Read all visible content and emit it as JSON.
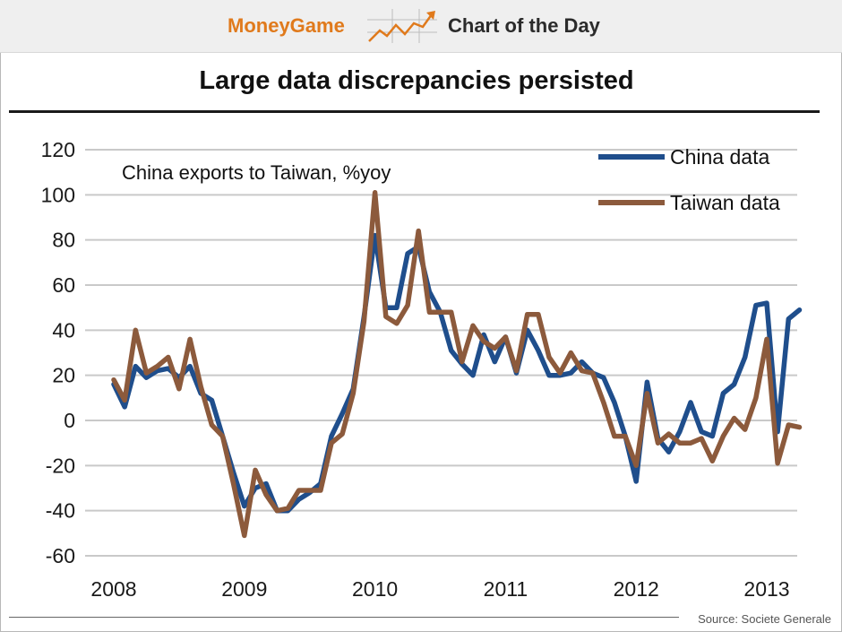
{
  "banner": {
    "brand": "MoneyGame",
    "label": "Chart of the Day"
  },
  "source": "Source: Societe Generale",
  "colors": {
    "china": "#1f4e8c",
    "taiwan": "#8c5a3c",
    "brand": "#e07a1c"
  },
  "chart_data": {
    "type": "line",
    "title": "Large data discrepancies persisted",
    "annotation": "China exports to Taiwan, %yoy",
    "xlabel": "",
    "ylabel": "",
    "x_ticks": [
      "2008",
      "2009",
      "2010",
      "2011",
      "2012",
      "2013"
    ],
    "y_ticks": [
      120,
      100,
      80,
      60,
      40,
      20,
      0,
      -20,
      -40,
      -60
    ],
    "ylim": [
      -60,
      120
    ],
    "x_start": 2008,
    "x_step_months": 1,
    "grid": true,
    "legend_position": "top-right",
    "series": [
      {
        "name": "China data",
        "values": [
          16,
          6,
          24,
          19,
          22,
          23,
          19,
          24,
          12,
          9,
          -7,
          -23,
          -38,
          -30,
          -28,
          -40,
          -40,
          -35,
          -32,
          -28,
          -7,
          3,
          14,
          46,
          82,
          50,
          50,
          74,
          77,
          57,
          48,
          31,
          25,
          20,
          38,
          26,
          37,
          21,
          40,
          31,
          20,
          20,
          21,
          26,
          21,
          19,
          8,
          -7,
          -27,
          17,
          -8,
          -14,
          -5,
          8,
          -5,
          -7,
          12,
          16,
          28,
          51,
          52,
          -5,
          45,
          49
        ]
      },
      {
        "name": "Taiwan data",
        "values": [
          18,
          9,
          40,
          21,
          24,
          28,
          14,
          36,
          15,
          -2,
          -7,
          -28,
          -51,
          -22,
          -33,
          -40,
          -39,
          -31,
          -31,
          -31,
          -10,
          -6,
          12,
          44,
          101,
          46,
          43,
          51,
          84,
          48,
          48,
          48,
          26,
          42,
          35,
          32,
          37,
          22,
          47,
          47,
          28,
          21,
          30,
          22,
          21,
          8,
          -7,
          -7,
          -20,
          12,
          -10,
          -6,
          -10,
          -10,
          -8,
          -18,
          -7,
          1,
          -4,
          10,
          36,
          -19,
          -2,
          -3
        ]
      }
    ]
  }
}
